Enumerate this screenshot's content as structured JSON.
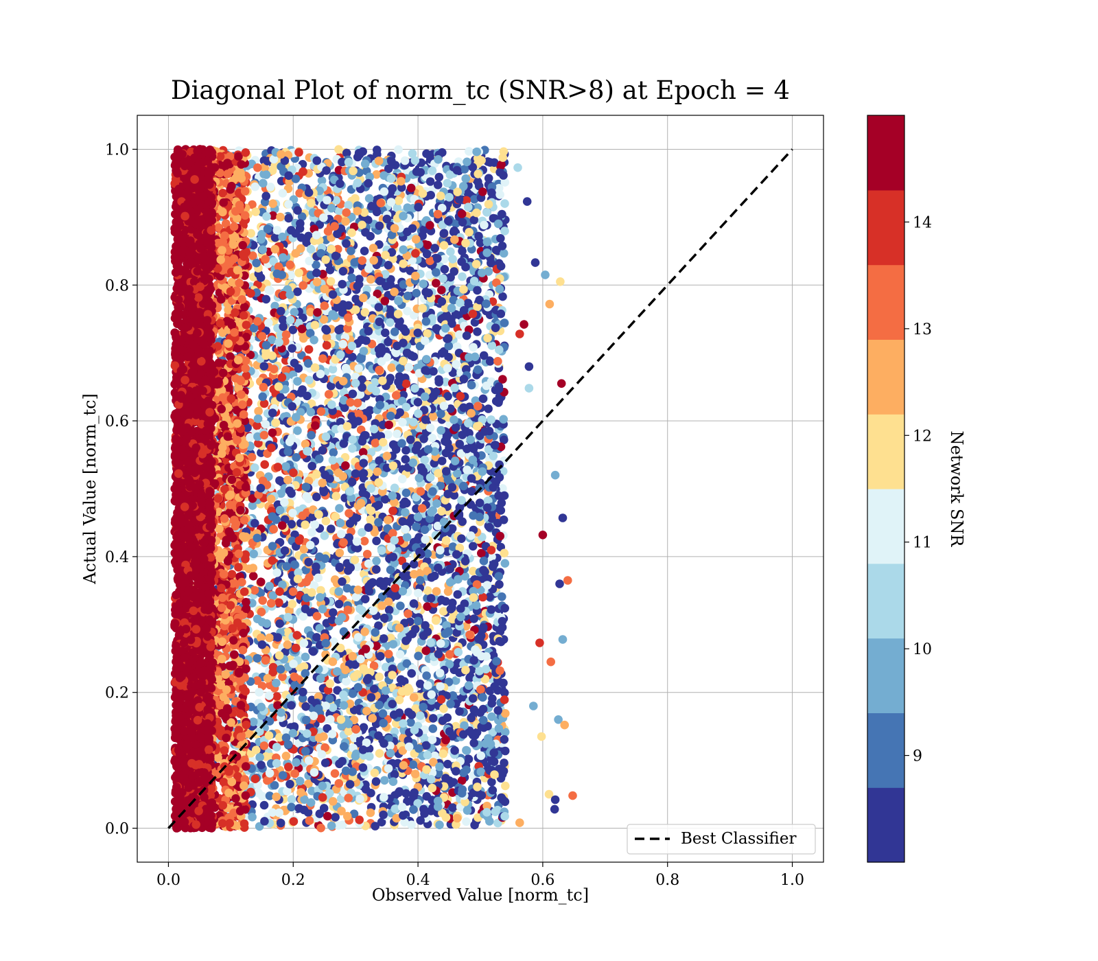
{
  "chart_data": {
    "type": "scatter",
    "title": "Diagonal Plot of norm_tc (SNR>8) at Epoch = 4",
    "xlabel": "Observed Value [norm_tc]",
    "ylabel": "Actual Value [norm_tc]",
    "xlim": [
      -0.05,
      1.05
    ],
    "ylim": [
      -0.05,
      1.05
    ],
    "xticks": [
      "0.0",
      "0.2",
      "0.4",
      "0.6",
      "0.8",
      "1.0"
    ],
    "yticks": [
      "0.0",
      "0.2",
      "0.4",
      "0.6",
      "0.8",
      "1.0"
    ],
    "grid": true,
    "legend_position": "lower-right",
    "reference_line": {
      "name": "Best Classifier",
      "x": [
        0,
        1
      ],
      "y": [
        0,
        1
      ],
      "style": "dashed",
      "color": "#000000"
    },
    "colorbar": {
      "label": "Network SNR",
      "range": [
        8,
        15
      ],
      "ticks": [
        "9",
        "10",
        "11",
        "12",
        "13",
        "14"
      ],
      "colors": [
        "#313695",
        "#4575b4",
        "#74add1",
        "#abd9e9",
        "#e0f3f8",
        "#fee090",
        "#fdae61",
        "#f46d43",
        "#d73027",
        "#a50026"
      ]
    },
    "scatter_description": {
      "dense_band": {
        "x": [
          0.01,
          0.07
        ],
        "y": [
          0.0,
          1.0
        ],
        "snr": "above 14"
      },
      "cloud": {
        "x": [
          0.07,
          0.54
        ],
        "y": [
          0.0,
          1.0
        ],
        "snr": [
          8,
          15
        ]
      },
      "outliers": [
        {
          "x": 0.63,
          "y": 0.655,
          "snr": 14.8
        },
        {
          "x": 0.6,
          "y": 0.432,
          "snr": 14.7
        },
        {
          "x": 0.632,
          "y": 0.457,
          "snr": 8.3
        },
        {
          "x": 0.62,
          "y": 0.52,
          "snr": 10.0
        },
        {
          "x": 0.64,
          "y": 0.365,
          "snr": 13.3
        },
        {
          "x": 0.627,
          "y": 0.36,
          "snr": 8.3
        },
        {
          "x": 0.632,
          "y": 0.278,
          "snr": 10.0
        },
        {
          "x": 0.595,
          "y": 0.273,
          "snr": 13.7
        },
        {
          "x": 0.613,
          "y": 0.245,
          "snr": 13.2
        },
        {
          "x": 0.585,
          "y": 0.18,
          "snr": 10.0
        },
        {
          "x": 0.625,
          "y": 0.16,
          "snr": 10.0
        },
        {
          "x": 0.635,
          "y": 0.152,
          "snr": 12.5
        },
        {
          "x": 0.598,
          "y": 0.135,
          "snr": 11.8
        },
        {
          "x": 0.61,
          "y": 0.05,
          "snr": 11.7
        },
        {
          "x": 0.648,
          "y": 0.048,
          "snr": 13.6
        },
        {
          "x": 0.62,
          "y": 0.042,
          "snr": 8.3
        },
        {
          "x": 0.619,
          "y": 0.028,
          "snr": 8.3
        },
        {
          "x": 0.563,
          "y": 0.008,
          "snr": 12.5
        },
        {
          "x": 0.611,
          "y": 0.772,
          "snr": 12.5
        },
        {
          "x": 0.628,
          "y": 0.805,
          "snr": 11.8
        },
        {
          "x": 0.604,
          "y": 0.815,
          "snr": 9.5
        },
        {
          "x": 0.588,
          "y": 0.833,
          "snr": 8.3
        },
        {
          "x": 0.575,
          "y": 0.923,
          "snr": 8.3
        },
        {
          "x": 0.56,
          "y": 0.973,
          "snr": 10.5
        },
        {
          "x": 0.57,
          "y": 0.742,
          "snr": 14.8
        },
        {
          "x": 0.563,
          "y": 0.728,
          "snr": 14.0
        },
        {
          "x": 0.578,
          "y": 0.68,
          "snr": 8.3
        },
        {
          "x": 0.578,
          "y": 0.648,
          "snr": 10.5
        }
      ]
    }
  }
}
